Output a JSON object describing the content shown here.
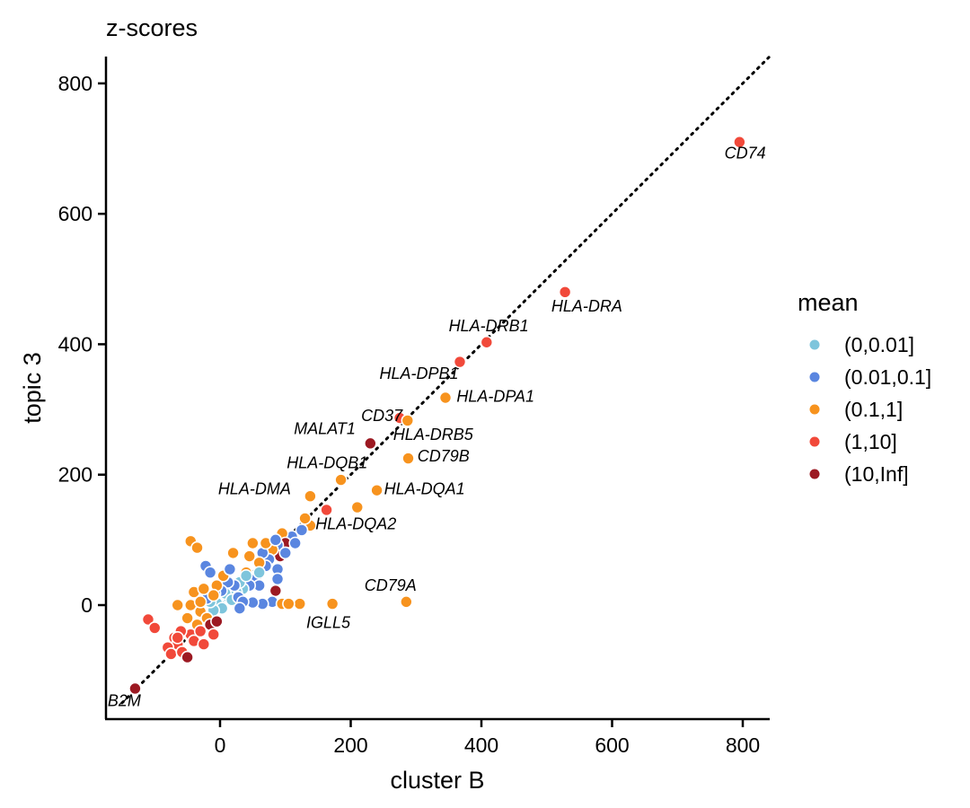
{
  "chart_data": {
    "type": "scatter",
    "title": "z-scores",
    "xlabel": "cluster B",
    "ylabel": "topic 3",
    "xlim": [
      -175,
      840
    ],
    "ylim": [
      -175,
      840
    ],
    "x_ticks": [
      "0",
      "200",
      "400",
      "600",
      "800"
    ],
    "x_tick_values": [
      0,
      200,
      400,
      600,
      800
    ],
    "y_ticks": [
      "0",
      "200",
      "400",
      "600",
      "800"
    ],
    "y_tick_values": [
      0,
      200,
      400,
      600,
      800
    ],
    "reference_line": {
      "type": "identity",
      "style": "dotted",
      "color": "#000000"
    },
    "grid": false,
    "legend": {
      "title": "mean",
      "position": "right",
      "entries": [
        {
          "label": "(0,0.01]",
          "color": "#7ec5dc"
        },
        {
          "label": "(0.01,0.1]",
          "color": "#5a86e0"
        },
        {
          "label": "(0.1,1]",
          "color": "#f7931e"
        },
        {
          "label": "(1,10]",
          "color": "#f1493a"
        },
        {
          "label": "(10,Inf]",
          "color": "#9c1922"
        }
      ]
    },
    "points": [
      {
        "x": 795,
        "y": 710,
        "cls": 3,
        "label": "CD74"
      },
      {
        "x": 528,
        "y": 480,
        "cls": 3,
        "label": "HLA-DRA"
      },
      {
        "x": 408,
        "y": 403,
        "cls": 3,
        "label": "HLA-DRB1"
      },
      {
        "x": 367,
        "y": 373,
        "cls": 3,
        "label": "HLA-DPB1"
      },
      {
        "x": 345,
        "y": 318,
        "cls": 2,
        "label": "HLA-DPA1"
      },
      {
        "x": 275,
        "y": 287,
        "cls": 3,
        "label": "CD37"
      },
      {
        "x": 287,
        "y": 283,
        "cls": 2,
        "label": "HLA-DRB5"
      },
      {
        "x": 230,
        "y": 248,
        "cls": 4,
        "label": "MALAT1"
      },
      {
        "x": 288,
        "y": 225,
        "cls": 2,
        "label": "CD79B"
      },
      {
        "x": 185,
        "y": 192,
        "cls": 2,
        "label": "HLA-DQB1"
      },
      {
        "x": 240,
        "y": 176,
        "cls": 2,
        "label": "HLA-DQA1"
      },
      {
        "x": 138,
        "y": 167,
        "cls": 2,
        "label": "HLA-DMA"
      },
      {
        "x": 163,
        "y": 146,
        "cls": 3,
        "label": ""
      },
      {
        "x": 210,
        "y": 150,
        "cls": 2,
        "label": "HLA-DQA2"
      },
      {
        "x": 285,
        "y": 5,
        "cls": 2,
        "label": "CD79A"
      },
      {
        "x": 172,
        "y": 2,
        "cls": 2,
        "label": "IGLL5"
      },
      {
        "x": -130,
        "y": -128,
        "cls": 4,
        "label": "B2M"
      },
      {
        "x": 138,
        "y": 122,
        "cls": 2,
        "label": ""
      },
      {
        "x": 130,
        "y": 133,
        "cls": 2,
        "label": ""
      },
      {
        "x": 122,
        "y": 2,
        "cls": 2,
        "label": ""
      },
      {
        "x": 125,
        "y": 115,
        "cls": 1,
        "label": ""
      },
      {
        "x": 110,
        "y": 105,
        "cls": 1,
        "label": ""
      },
      {
        "x": 95,
        "y": 110,
        "cls": 2,
        "label": ""
      },
      {
        "x": 100,
        "y": 95,
        "cls": 4,
        "label": ""
      },
      {
        "x": 88,
        "y": 92,
        "cls": 1,
        "label": ""
      },
      {
        "x": 92,
        "y": 75,
        "cls": 4,
        "label": ""
      },
      {
        "x": 80,
        "y": 85,
        "cls": 2,
        "label": ""
      },
      {
        "x": 75,
        "y": 70,
        "cls": 1,
        "label": ""
      },
      {
        "x": 70,
        "y": 60,
        "cls": 1,
        "label": ""
      },
      {
        "x": 65,
        "y": 80,
        "cls": 1,
        "label": ""
      },
      {
        "x": 60,
        "y": 65,
        "cls": 2,
        "label": ""
      },
      {
        "x": 55,
        "y": 40,
        "cls": 1,
        "label": ""
      },
      {
        "x": 88,
        "y": 55,
        "cls": 1,
        "label": ""
      },
      {
        "x": 88,
        "y": 40,
        "cls": 1,
        "label": ""
      },
      {
        "x": 85,
        "y": 22,
        "cls": 4,
        "label": ""
      },
      {
        "x": 80,
        "y": 5,
        "cls": 1,
        "label": ""
      },
      {
        "x": 65,
        "y": 2,
        "cls": 1,
        "label": ""
      },
      {
        "x": 50,
        "y": 4,
        "cls": 1,
        "label": ""
      },
      {
        "x": 95,
        "y": 2,
        "cls": 2,
        "label": ""
      },
      {
        "x": 105,
        "y": 2,
        "cls": 2,
        "label": ""
      },
      {
        "x": 60,
        "y": 30,
        "cls": 1,
        "label": ""
      },
      {
        "x": 45,
        "y": 30,
        "cls": 1,
        "label": ""
      },
      {
        "x": 40,
        "y": 50,
        "cls": 2,
        "label": ""
      },
      {
        "x": 35,
        "y": 25,
        "cls": 0,
        "label": ""
      },
      {
        "x": 30,
        "y": 35,
        "cls": 0,
        "label": ""
      },
      {
        "x": 25,
        "y": 20,
        "cls": 0,
        "label": ""
      },
      {
        "x": 20,
        "y": 15,
        "cls": 0,
        "label": ""
      },
      {
        "x": 15,
        "y": 25,
        "cls": 0,
        "label": ""
      },
      {
        "x": 10,
        "y": 10,
        "cls": 0,
        "label": ""
      },
      {
        "x": 5,
        "y": 5,
        "cls": 0,
        "label": ""
      },
      {
        "x": 0,
        "y": 0,
        "cls": 0,
        "label": ""
      },
      {
        "x": -5,
        "y": 3,
        "cls": 0,
        "label": ""
      },
      {
        "x": 3,
        "y": -5,
        "cls": 0,
        "label": ""
      },
      {
        "x": -10,
        "y": -8,
        "cls": 0,
        "label": ""
      },
      {
        "x": -15,
        "y": 5,
        "cls": 0,
        "label": ""
      },
      {
        "x": 8,
        "y": 18,
        "cls": 0,
        "label": ""
      },
      {
        "x": 18,
        "y": 8,
        "cls": 0,
        "label": ""
      },
      {
        "x": 28,
        "y": 12,
        "cls": 1,
        "label": ""
      },
      {
        "x": 22,
        "y": 30,
        "cls": 1,
        "label": ""
      },
      {
        "x": 12,
        "y": 35,
        "cls": 1,
        "label": ""
      },
      {
        "x": 2,
        "y": 22,
        "cls": 1,
        "label": ""
      },
      {
        "x": -8,
        "y": 18,
        "cls": 1,
        "label": ""
      },
      {
        "x": -20,
        "y": 10,
        "cls": 1,
        "label": ""
      },
      {
        "x": -22,
        "y": 60,
        "cls": 1,
        "label": ""
      },
      {
        "x": -15,
        "y": 50,
        "cls": 1,
        "label": ""
      },
      {
        "x": 5,
        "y": 45,
        "cls": 2,
        "label": ""
      },
      {
        "x": -5,
        "y": 30,
        "cls": 2,
        "label": ""
      },
      {
        "x": -45,
        "y": 98,
        "cls": 2,
        "label": ""
      },
      {
        "x": -35,
        "y": 88,
        "cls": 2,
        "label": ""
      },
      {
        "x": 20,
        "y": 80,
        "cls": 2,
        "label": ""
      },
      {
        "x": -65,
        "y": 0,
        "cls": 2,
        "label": ""
      },
      {
        "x": -45,
        "y": 0,
        "cls": 2,
        "label": ""
      },
      {
        "x": -40,
        "y": 20,
        "cls": 2,
        "label": ""
      },
      {
        "x": -25,
        "y": 25,
        "cls": 2,
        "label": ""
      },
      {
        "x": -30,
        "y": -10,
        "cls": 2,
        "label": ""
      },
      {
        "x": -20,
        "y": -20,
        "cls": 2,
        "label": ""
      },
      {
        "x": -35,
        "y": -30,
        "cls": 2,
        "label": ""
      },
      {
        "x": -50,
        "y": -20,
        "cls": 2,
        "label": ""
      },
      {
        "x": -45,
        "y": -45,
        "cls": 3,
        "label": ""
      },
      {
        "x": -60,
        "y": -40,
        "cls": 3,
        "label": ""
      },
      {
        "x": -70,
        "y": -50,
        "cls": 3,
        "label": ""
      },
      {
        "x": -65,
        "y": -60,
        "cls": 3,
        "label": ""
      },
      {
        "x": -80,
        "y": -65,
        "cls": 3,
        "label": ""
      },
      {
        "x": -75,
        "y": -75,
        "cls": 3,
        "label": ""
      },
      {
        "x": -58,
        "y": -72,
        "cls": 3,
        "label": ""
      },
      {
        "x": -50,
        "y": -80,
        "cls": 4,
        "label": ""
      },
      {
        "x": -65,
        "y": -50,
        "cls": 3,
        "label": ""
      },
      {
        "x": -40,
        "y": -55,
        "cls": 3,
        "label": ""
      },
      {
        "x": -30,
        "y": -40,
        "cls": 3,
        "label": ""
      },
      {
        "x": -15,
        "y": -30,
        "cls": 4,
        "label": ""
      },
      {
        "x": -5,
        "y": -25,
        "cls": 4,
        "label": ""
      },
      {
        "x": -25,
        "y": -60,
        "cls": 3,
        "label": ""
      },
      {
        "x": -10,
        "y": -45,
        "cls": 3,
        "label": ""
      },
      {
        "x": -110,
        "y": -22,
        "cls": 3,
        "label": ""
      },
      {
        "x": -100,
        "y": -35,
        "cls": 3,
        "label": ""
      },
      {
        "x": -30,
        "y": 5,
        "cls": 2,
        "label": ""
      },
      {
        "x": -10,
        "y": 15,
        "cls": 2,
        "label": ""
      },
      {
        "x": 50,
        "y": 95,
        "cls": 2,
        "label": ""
      },
      {
        "x": 70,
        "y": 95,
        "cls": 2,
        "label": ""
      },
      {
        "x": 45,
        "y": 75,
        "cls": 2,
        "label": ""
      },
      {
        "x": 85,
        "y": 100,
        "cls": 1,
        "label": ""
      },
      {
        "x": 100,
        "y": 80,
        "cls": 1,
        "label": ""
      },
      {
        "x": 115,
        "y": 95,
        "cls": 1,
        "label": ""
      },
      {
        "x": 60,
        "y": 50,
        "cls": 0,
        "label": ""
      },
      {
        "x": 40,
        "y": 45,
        "cls": 0,
        "label": ""
      },
      {
        "x": 35,
        "y": 5,
        "cls": 1,
        "label": ""
      },
      {
        "x": 30,
        "y": -5,
        "cls": 1,
        "label": ""
      },
      {
        "x": 15,
        "y": 55,
        "cls": 1,
        "label": ""
      }
    ],
    "labels": [
      {
        "text": "CD74",
        "x": 772,
        "y": 685
      },
      {
        "text": "HLA-DRA",
        "x": 507,
        "y": 450
      },
      {
        "text": "HLA-DRB1",
        "x": 350,
        "y": 420
      },
      {
        "text": "HLA-DPB1",
        "x": 244,
        "y": 347
      },
      {
        "text": "HLA-DPA1",
        "x": 362,
        "y": 312
      },
      {
        "text": "CD37",
        "x": 216,
        "y": 282
      },
      {
        "text": "HLA-DRB5",
        "x": 265,
        "y": 253
      },
      {
        "text": "MALAT1",
        "x": 113,
        "y": 262
      },
      {
        "text": "CD79B",
        "x": 302,
        "y": 220
      },
      {
        "text": "HLA-DQB1",
        "x": 102,
        "y": 210
      },
      {
        "text": "HLA-DQA1",
        "x": 251,
        "y": 170
      },
      {
        "text": "HLA-DMA",
        "x": -3,
        "y": 170
      },
      {
        "text": "HLA-DQA2",
        "x": 146,
        "y": 116
      },
      {
        "text": "CD79A",
        "x": 221,
        "y": 22
      },
      {
        "text": "IGLL5",
        "x": 132,
        "y": -35
      },
      {
        "text": "B2M",
        "x": -172,
        "y": -155
      }
    ]
  }
}
